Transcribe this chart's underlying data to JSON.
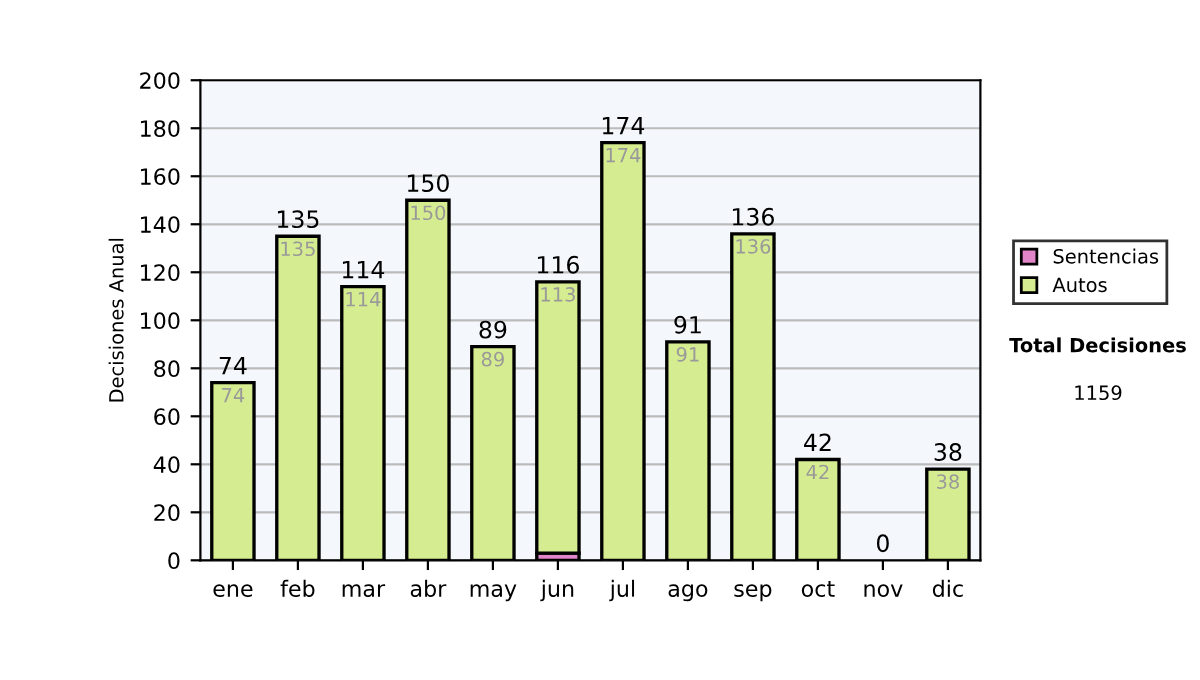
{
  "chart_data": {
    "type": "bar",
    "stacked": true,
    "ylabel": "Decisiones Anual",
    "categories": [
      "ene",
      "feb",
      "mar",
      "abr",
      "may",
      "jun",
      "jul",
      "ago",
      "sep",
      "oct",
      "nov",
      "dic"
    ],
    "series": [
      {
        "name": "Sentencias",
        "color": "#e085c8",
        "values": [
          0,
          0,
          0,
          0,
          0,
          3,
          0,
          0,
          0,
          0,
          0,
          0
        ]
      },
      {
        "name": "Autos",
        "color": "#d6ec90",
        "values": [
          74,
          135,
          114,
          150,
          89,
          113,
          174,
          91,
          136,
          42,
          0,
          38
        ],
        "value_labels": [
          "74",
          "135",
          "114",
          "150",
          "89",
          "113",
          "174",
          "91",
          "136",
          "42",
          null,
          "38"
        ]
      }
    ],
    "totals": [
      "74",
      "135",
      "114",
      "150",
      "89",
      "116",
      "174",
      "91",
      "136",
      "42",
      "0",
      "38"
    ],
    "ylim": [
      0,
      200
    ],
    "yticks": [
      0,
      20,
      40,
      60,
      80,
      100,
      120,
      140,
      160,
      180,
      200
    ],
    "grid": "y",
    "legend": "right",
    "annotations": [
      "Total Decisiones",
      "1159"
    ]
  }
}
